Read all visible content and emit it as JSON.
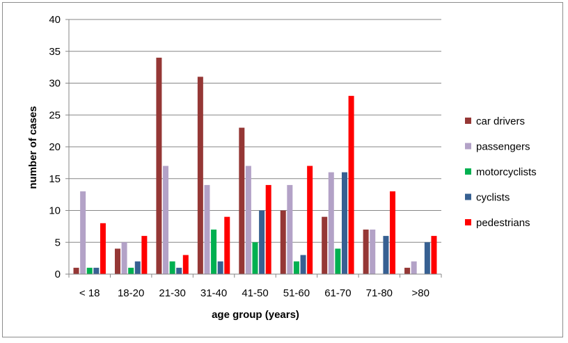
{
  "chart_data": {
    "type": "bar",
    "title": "",
    "xlabel": "age group (years)",
    "ylabel": "number of cases",
    "ylim": [
      0,
      40
    ],
    "yticks": [
      0,
      5,
      10,
      15,
      20,
      25,
      30,
      35,
      40
    ],
    "grid": true,
    "legend_position": "right",
    "categories": [
      "< 18",
      "18-20",
      "21-30",
      "31-40",
      "41-50",
      "51-60",
      "61-70",
      "71-80",
      ">80"
    ],
    "series": [
      {
        "name": "car drivers",
        "color": "#953735",
        "values": [
          1,
          4,
          34,
          31,
          23,
          10,
          9,
          7,
          1
        ]
      },
      {
        "name": "passengers",
        "color": "#B3A2C7",
        "values": [
          13,
          5,
          17,
          14,
          17,
          14,
          16,
          7,
          2
        ]
      },
      {
        "name": "motorcyclists",
        "color": "#00B050",
        "values": [
          1,
          1,
          2,
          7,
          5,
          2,
          4,
          0,
          0
        ]
      },
      {
        "name": "cyclists",
        "color": "#376092",
        "values": [
          1,
          2,
          1,
          2,
          10,
          3,
          16,
          6,
          5
        ]
      },
      {
        "name": "pedestrians",
        "color": "#FF0000",
        "values": [
          8,
          6,
          3,
          9,
          14,
          17,
          28,
          13,
          6
        ]
      }
    ]
  }
}
